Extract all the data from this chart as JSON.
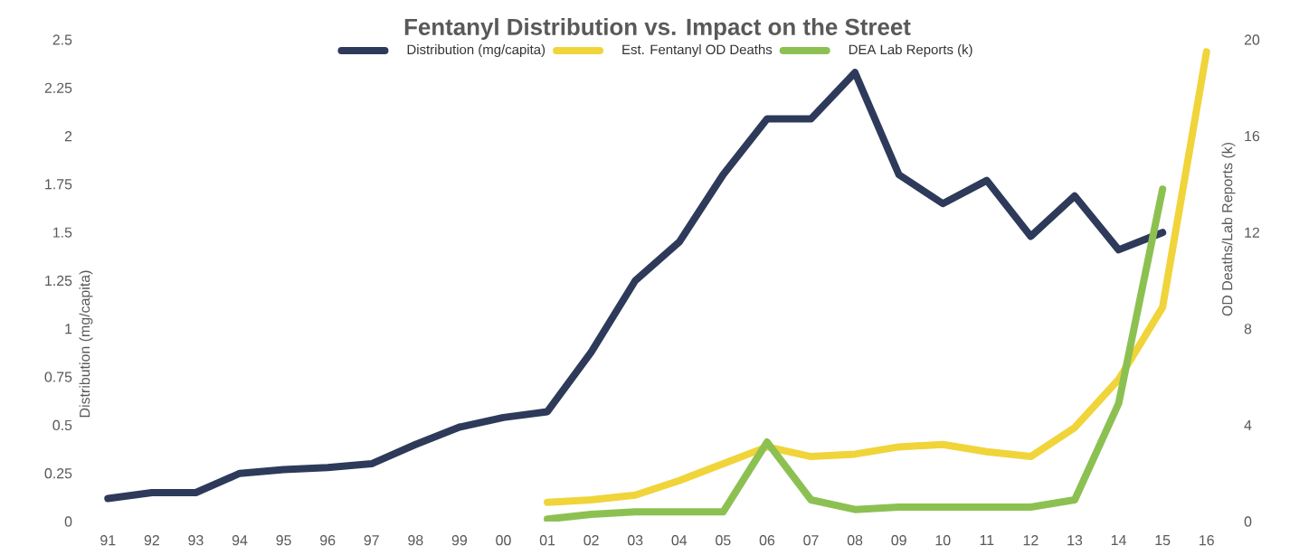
{
  "chart_data": {
    "type": "line",
    "title": "Fentanyl Distribution vs. Impact on the Street",
    "categories": [
      "91",
      "92",
      "93",
      "94",
      "95",
      "96",
      "97",
      "98",
      "99",
      "00",
      "01",
      "02",
      "03",
      "04",
      "05",
      "06",
      "07",
      "08",
      "09",
      "10",
      "11",
      "12",
      "13",
      "14",
      "15",
      "16"
    ],
    "series": [
      {
        "name": "Distribution (mg/capita)",
        "color": "#2e3a5a",
        "values": [
          0.12,
          0.15,
          0.15,
          0.25,
          0.27,
          0.28,
          0.3,
          0.4,
          0.49,
          0.54,
          0.57,
          0.88,
          1.25,
          1.45,
          1.8,
          2.09,
          2.09,
          2.33,
          1.8,
          1.65,
          1.77,
          1.48,
          1.69,
          1.41,
          1.5,
          null
        ]
      },
      {
        "name": "Est. Fentanyl OD Deaths",
        "color": "#f0d43a",
        "axis": "y2",
        "values": [
          null,
          null,
          null,
          null,
          null,
          null,
          null,
          null,
          null,
          null,
          0.8,
          0.9,
          1.1,
          1.7,
          2.4,
          3.1,
          2.7,
          2.8,
          3.1,
          3.2,
          2.9,
          2.7,
          3.9,
          5.9,
          8.9,
          19.5
        ]
      },
      {
        "name": "DEA Lab Reports (k)",
        "color": "#8cc152",
        "axis": "y2",
        "values": [
          null,
          null,
          null,
          null,
          null,
          null,
          null,
          null,
          null,
          null,
          0.1,
          0.3,
          0.4,
          0.4,
          0.4,
          3.3,
          0.9,
          0.5,
          0.6,
          0.6,
          0.6,
          0.6,
          0.9,
          4.9,
          13.8,
          null
        ]
      }
    ],
    "ylabel": "Distribution (mg/capita)",
    "y2label": "OD Deaths/Lab Reports (k)",
    "ylim": [
      0,
      2.5
    ],
    "yticks": [
      0,
      0.25,
      0.5,
      0.75,
      1,
      1.25,
      1.5,
      1.75,
      2,
      2.25,
      2.5
    ],
    "y2lim": [
      0,
      20
    ],
    "y2ticks": [
      0,
      4,
      8,
      12,
      16,
      20
    ],
    "legend": "top"
  }
}
